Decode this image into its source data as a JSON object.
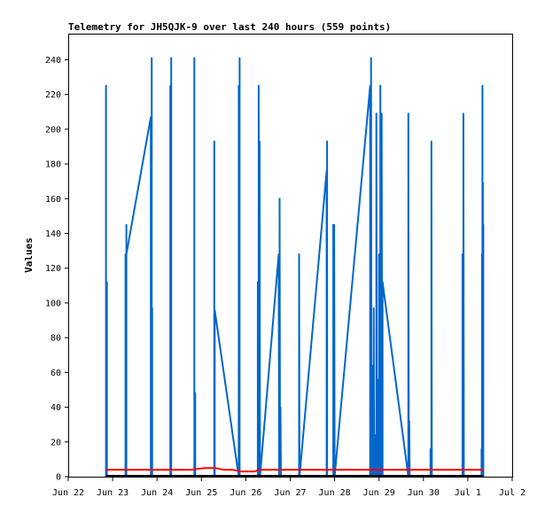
{
  "chart_data": {
    "type": "line",
    "title": "Telemetry for JH5QJK-9 over last 240 hours (559 points)",
    "xlabel": "",
    "ylabel": "Values",
    "x_tick_labels": [
      "Jun 22",
      "Jun 23",
      "Jun 24",
      "Jun 25",
      "Jun 26",
      "Jun 27",
      "Jun 28",
      "Jun 29",
      "Jun 30",
      "Jul 1",
      "Jul 2"
    ],
    "xlim": [
      0,
      10
    ],
    "ylim": [
      0,
      255
    ],
    "y_ticks": [
      0,
      20,
      40,
      60,
      80,
      100,
      120,
      140,
      160,
      180,
      200,
      220,
      240
    ],
    "grid": false,
    "legend": "none",
    "colors": {
      "frame": "#000000",
      "series_blue": "#0066cc",
      "series_red": "#ff0000"
    },
    "series": [
      {
        "color": "#0066cc",
        "points": [
          [
            0.85,
            0
          ],
          [
            0.85,
            225
          ],
          [
            0.85,
            0
          ],
          [
            0.87,
            0
          ],
          [
            0.87,
            112
          ],
          [
            0.87,
            0
          ],
          [
            1.29,
            0
          ],
          [
            1.29,
            128
          ],
          [
            1.3,
            0
          ],
          [
            1.31,
            0
          ],
          [
            1.31,
            145
          ],
          [
            1.31,
            128
          ],
          [
            1.86,
            207
          ],
          [
            1.86,
            0
          ],
          [
            1.88,
            0
          ],
          [
            1.88,
            241
          ],
          [
            1.88,
            0
          ],
          [
            1.89,
            0
          ],
          [
            1.89,
            97
          ],
          [
            1.89,
            0
          ],
          [
            2.3,
            0
          ],
          [
            2.3,
            225
          ],
          [
            2.31,
            0
          ],
          [
            2.32,
            0
          ],
          [
            2.32,
            241
          ],
          [
            2.32,
            0
          ],
          [
            2.84,
            0
          ],
          [
            2.84,
            241
          ],
          [
            2.84,
            0
          ],
          [
            2.86,
            0
          ],
          [
            2.86,
            48
          ],
          [
            2.86,
            0
          ],
          [
            3.29,
            0
          ],
          [
            3.29,
            193
          ],
          [
            3.29,
            0
          ],
          [
            3.3,
            0
          ],
          [
            3.3,
            96
          ],
          [
            3.84,
            0
          ],
          [
            3.84,
            225
          ],
          [
            3.85,
            0
          ],
          [
            3.86,
            0
          ],
          [
            3.86,
            241
          ],
          [
            3.86,
            0
          ],
          [
            4.27,
            0
          ],
          [
            4.27,
            112
          ],
          [
            4.28,
            0
          ],
          [
            4.29,
            0
          ],
          [
            4.29,
            225
          ],
          [
            4.3,
            0
          ],
          [
            4.31,
            0
          ],
          [
            4.31,
            193
          ],
          [
            4.32,
            0
          ],
          [
            4.74,
            128
          ],
          [
            4.75,
            0
          ],
          [
            4.76,
            0
          ],
          [
            4.76,
            160
          ],
          [
            4.77,
            0
          ],
          [
            4.78,
            0
          ],
          [
            4.78,
            40
          ],
          [
            4.79,
            0
          ],
          [
            5.2,
            0
          ],
          [
            5.2,
            128
          ],
          [
            5.21,
            0
          ],
          [
            5.82,
            176
          ],
          [
            5.82,
            0
          ],
          [
            5.83,
            0
          ],
          [
            5.83,
            193
          ],
          [
            5.83,
            0
          ],
          [
            5.97,
            0
          ],
          [
            5.97,
            145
          ],
          [
            5.98,
            0
          ],
          [
            5.99,
            0
          ],
          [
            5.99,
            145
          ],
          [
            6.0,
            0
          ],
          [
            6.8,
            225
          ],
          [
            6.8,
            0
          ],
          [
            6.82,
            0
          ],
          [
            6.82,
            241
          ],
          [
            6.83,
            0
          ],
          [
            6.84,
            0
          ],
          [
            6.84,
            64
          ],
          [
            6.85,
            0
          ],
          [
            6.88,
            0
          ],
          [
            6.88,
            97
          ],
          [
            6.89,
            0
          ],
          [
            6.9,
            0
          ],
          [
            6.9,
            24
          ],
          [
            6.91,
            0
          ],
          [
            6.94,
            0
          ],
          [
            6.94,
            209
          ],
          [
            6.95,
            0
          ],
          [
            6.96,
            0
          ],
          [
            6.96,
            56
          ],
          [
            6.97,
            0
          ],
          [
            7.0,
            0
          ],
          [
            7.0,
            128
          ],
          [
            7.01,
            0
          ],
          [
            7.03,
            0
          ],
          [
            7.03,
            225
          ],
          [
            7.04,
            0
          ],
          [
            7.06,
            0
          ],
          [
            7.06,
            209
          ],
          [
            7.07,
            0
          ],
          [
            7.08,
            0
          ],
          [
            7.08,
            112
          ],
          [
            7.66,
            0
          ],
          [
            7.66,
            209
          ],
          [
            7.67,
            0
          ],
          [
            7.68,
            0
          ],
          [
            7.68,
            32
          ],
          [
            7.69,
            0
          ],
          [
            8.16,
            0
          ],
          [
            8.16,
            16
          ],
          [
            8.17,
            0
          ],
          [
            8.18,
            0
          ],
          [
            8.18,
            193
          ],
          [
            8.19,
            0
          ],
          [
            8.88,
            0
          ],
          [
            8.88,
            128
          ],
          [
            8.89,
            0
          ],
          [
            8.9,
            0
          ],
          [
            8.9,
            209
          ],
          [
            8.91,
            0
          ],
          [
            9.31,
            0
          ],
          [
            9.31,
            16
          ],
          [
            9.31,
            0
          ],
          [
            9.32,
            0
          ],
          [
            9.32,
            128
          ],
          [
            9.32,
            0
          ],
          [
            9.33,
            0
          ],
          [
            9.33,
            225
          ],
          [
            9.33,
            0
          ],
          [
            9.34,
            0
          ],
          [
            9.34,
            169
          ],
          [
            9.34,
            0
          ],
          [
            9.35,
            0
          ],
          [
            9.35,
            145
          ],
          [
            9.35,
            0
          ]
        ]
      },
      {
        "color": "#ff0000",
        "points": [
          [
            0.85,
            4
          ],
          [
            1.8,
            4
          ],
          [
            2.8,
            4
          ],
          [
            2.9,
            4.5
          ],
          [
            3.1,
            5
          ],
          [
            3.3,
            5
          ],
          [
            3.5,
            4
          ],
          [
            3.7,
            4
          ],
          [
            3.9,
            3
          ],
          [
            4.2,
            3
          ],
          [
            4.3,
            4
          ],
          [
            5.0,
            4
          ],
          [
            6.0,
            4
          ],
          [
            7.0,
            4
          ],
          [
            8.0,
            4
          ],
          [
            9.0,
            4
          ],
          [
            9.35,
            4
          ]
        ]
      },
      {
        "color": "#000000",
        "points": [
          [
            0.85,
            0.5
          ],
          [
            9.35,
            0.5
          ]
        ]
      }
    ]
  }
}
